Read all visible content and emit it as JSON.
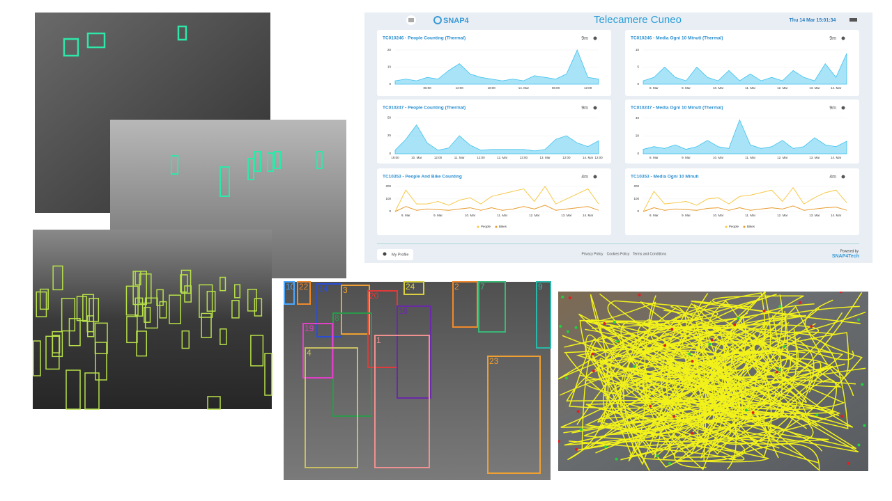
{
  "dashboard": {
    "brand": "SNAP4",
    "title": "Telecamere Cuneo",
    "datetime": "Thu 14 Mar 15:01:34",
    "footer": {
      "profile": "My Profile",
      "links": [
        "Privacy Policy",
        "Cookies Policy",
        "Terms and Conditions"
      ],
      "powered": "Powered by",
      "brand": "SNAP4Tech"
    }
  },
  "tracking_labels": [
    "10",
    "22",
    "14",
    "3",
    "20",
    "2",
    "7",
    "24",
    "9",
    "8",
    "19",
    "16",
    "4",
    "1",
    "23"
  ],
  "chart_data": [
    {
      "type": "area",
      "title": "TC010246 - People Counting (Thermal)",
      "updated": "9m",
      "color": "#3fc1ee",
      "categories": [
        null,
        null,
        null,
        "06:00",
        null,
        null,
        "12:00",
        null,
        null,
        "18:00",
        null,
        null,
        "14. Mar",
        null,
        null,
        "06:00",
        null,
        null,
        "12:00",
        null
      ],
      "values": [
        2,
        3,
        2,
        4,
        3,
        8,
        12,
        6,
        4,
        3,
        2,
        3,
        2,
        5,
        4,
        3,
        6,
        20,
        4,
        3
      ],
      "ylim": [
        0,
        22
      ],
      "yticks": [
        0,
        10,
        20
      ]
    },
    {
      "type": "area",
      "title": "TC010246 - Media Ogni 10 Minuti (Thermal)",
      "updated": "9m",
      "color": "#3fc1ee",
      "categories": [
        null,
        "8. Mar",
        null,
        null,
        "9. Mar",
        null,
        null,
        "10. Mar",
        null,
        null,
        "11. Mar",
        null,
        null,
        "12. Mar",
        null,
        null,
        "13. Mar",
        null,
        "14. Mar",
        null
      ],
      "values": [
        1,
        2,
        5,
        2,
        1,
        5,
        2,
        1,
        4,
        1,
        3,
        1,
        2,
        1,
        4,
        2,
        1,
        6,
        2,
        9
      ],
      "ylim": [
        0,
        11
      ],
      "yticks": [
        0,
        5,
        10
      ]
    },
    {
      "type": "area",
      "title": "TC010247 - People Counting (Thermal)",
      "updated": "9m",
      "color": "#3fc1ee",
      "categories": [
        "18:00",
        null,
        "10. Mar",
        null,
        "12:00",
        null,
        "11. Mar",
        null,
        "12:00",
        null,
        "12. Mar",
        null,
        "12:00",
        null,
        "13. Mar",
        null,
        "12:00",
        null,
        "14. Mar",
        "12:00"
      ],
      "values": [
        5,
        20,
        40,
        15,
        5,
        8,
        25,
        12,
        5,
        6,
        6,
        6,
        6,
        4,
        6,
        20,
        25,
        15,
        10,
        18
      ],
      "ylim": [
        0,
        52
      ],
      "yticks": [
        0,
        25,
        50
      ]
    },
    {
      "type": "area",
      "title": "TC010247 - Media Ogni 10 Minuti (Thermal)",
      "updated": "9m",
      "color": "#3fc1ee",
      "categories": [
        null,
        "8. Mar",
        null,
        null,
        "9. Mar",
        null,
        null,
        "10. Mar",
        null,
        null,
        "11. Mar",
        null,
        null,
        "12. Mar",
        null,
        null,
        "13. Mar",
        null,
        "14. Mar",
        null
      ],
      "values": [
        5,
        8,
        6,
        10,
        5,
        8,
        15,
        8,
        6,
        38,
        10,
        6,
        8,
        15,
        6,
        8,
        18,
        10,
        8,
        14
      ],
      "ylim": [
        0,
        42
      ],
      "yticks": [
        0,
        20,
        40
      ]
    },
    {
      "type": "line",
      "title": "TC10353 - People And Bike Counting",
      "updated": "4m",
      "legend": "bottom",
      "categories": [
        null,
        "8. Mar",
        null,
        null,
        "9. Mar",
        null,
        null,
        "10. Mar",
        null,
        null,
        "11. Mar",
        null,
        null,
        "12. Mar",
        null,
        null,
        "13. Mar",
        null,
        "14. Mar",
        null
      ],
      "series": [
        {
          "name": "People",
          "color": "#f7c948",
          "values": [
            0,
            170,
            60,
            60,
            80,
            50,
            90,
            110,
            60,
            120,
            140,
            160,
            180,
            80,
            200,
            60,
            100,
            140,
            180,
            60
          ]
        },
        {
          "name": "Bikes",
          "color": "#e89a2c",
          "values": [
            0,
            40,
            10,
            20,
            15,
            10,
            20,
            30,
            10,
            30,
            10,
            20,
            40,
            20,
            50,
            10,
            20,
            30,
            40,
            10
          ]
        }
      ],
      "ylim": [
        0,
        210
      ],
      "yticks": [
        0,
        100,
        200
      ]
    },
    {
      "type": "line",
      "title": "TC10353 - Media Ogni 10 Minuti",
      "updated": "4m",
      "legend": "bottom",
      "categories": [
        null,
        "8. Mar",
        null,
        null,
        "9. Mar",
        null,
        null,
        "10. Mar",
        null,
        null,
        "11. Mar",
        null,
        null,
        "12. Mar",
        null,
        null,
        "13. Mar",
        null,
        "14. Mar",
        null
      ],
      "series": [
        {
          "name": "People",
          "color": "#f7c948",
          "values": [
            0,
            160,
            60,
            70,
            80,
            50,
            100,
            110,
            60,
            120,
            130,
            150,
            170,
            80,
            190,
            60,
            110,
            150,
            170,
            70
          ]
        },
        {
          "name": "Bikes",
          "color": "#e89a2c",
          "values": [
            0,
            30,
            10,
            20,
            15,
            10,
            25,
            30,
            10,
            30,
            10,
            20,
            30,
            20,
            45,
            10,
            20,
            30,
            35,
            10
          ]
        }
      ],
      "ylim": [
        0,
        210
      ],
      "yticks": [
        0,
        100,
        200
      ]
    }
  ]
}
